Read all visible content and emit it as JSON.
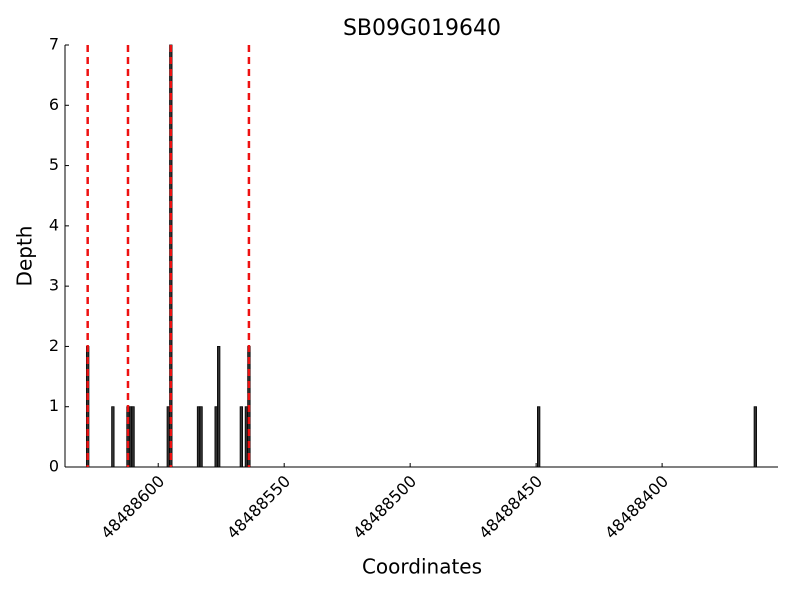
{
  "chart_data": {
    "type": "bar",
    "title": "SB09G019640",
    "x_label": "Coordinates",
    "y_label": "Depth",
    "x": [
      48488628,
      48488618,
      48488612,
      48488611,
      48488610,
      48488596,
      48488595,
      48488584,
      48488583,
      48488577,
      48488576,
      48488567,
      48488565,
      48488564,
      48488449,
      48488363
    ],
    "values": [
      2,
      1,
      1,
      1,
      1,
      1,
      7,
      1,
      1,
      1,
      2,
      1,
      1,
      2,
      1,
      1
    ],
    "color": "#333333",
    "vlines": [
      48488628,
      48488612,
      48488595,
      48488564
    ],
    "vline_color": "#ee1111",
    "xlim": [
      48488637,
      48488354
    ],
    "xticks": [
      48488600,
      48488550,
      48488500,
      48488450,
      48488400
    ],
    "ylim": [
      0,
      7
    ],
    "yticks": [
      0,
      1,
      2,
      3,
      4,
      5,
      6,
      7
    ],
    "grid": false
  }
}
